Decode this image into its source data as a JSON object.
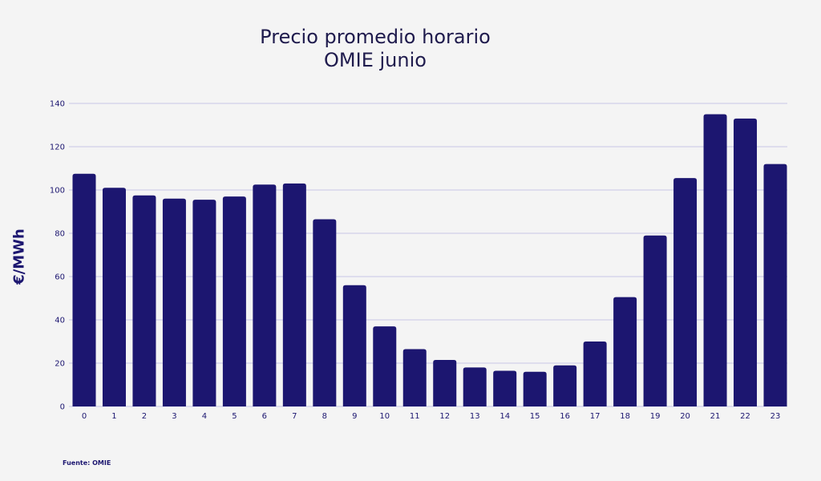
{
  "title_lines": [
    "Precio promedio horario",
    "OMIE junio"
  ],
  "source": "Fuente: OMIE",
  "colors": {
    "bar": "#1c1670",
    "grid": "#c8c6e6",
    "background": "#f4f4f4"
  },
  "chart_data": {
    "type": "bar",
    "title": "Precio promedio horario OMIE junio",
    "xlabel": "",
    "ylabel": "€/MWh",
    "ylim": [
      0,
      140
    ],
    "yticks": [
      0,
      20,
      40,
      60,
      80,
      100,
      120,
      140
    ],
    "grid": true,
    "categories": [
      "0",
      "1",
      "2",
      "3",
      "4",
      "5",
      "6",
      "7",
      "8",
      "9",
      "10",
      "11",
      "12",
      "13",
      "14",
      "15",
      "16",
      "17",
      "18",
      "19",
      "20",
      "21",
      "22",
      "23"
    ],
    "values": [
      107.5,
      101,
      97.5,
      96,
      95.5,
      97,
      102.5,
      103,
      86.5,
      56,
      37,
      26.5,
      21.5,
      18,
      16.5,
      16,
      19,
      30,
      50.5,
      79,
      105.5,
      135,
      133,
      112
    ]
  }
}
